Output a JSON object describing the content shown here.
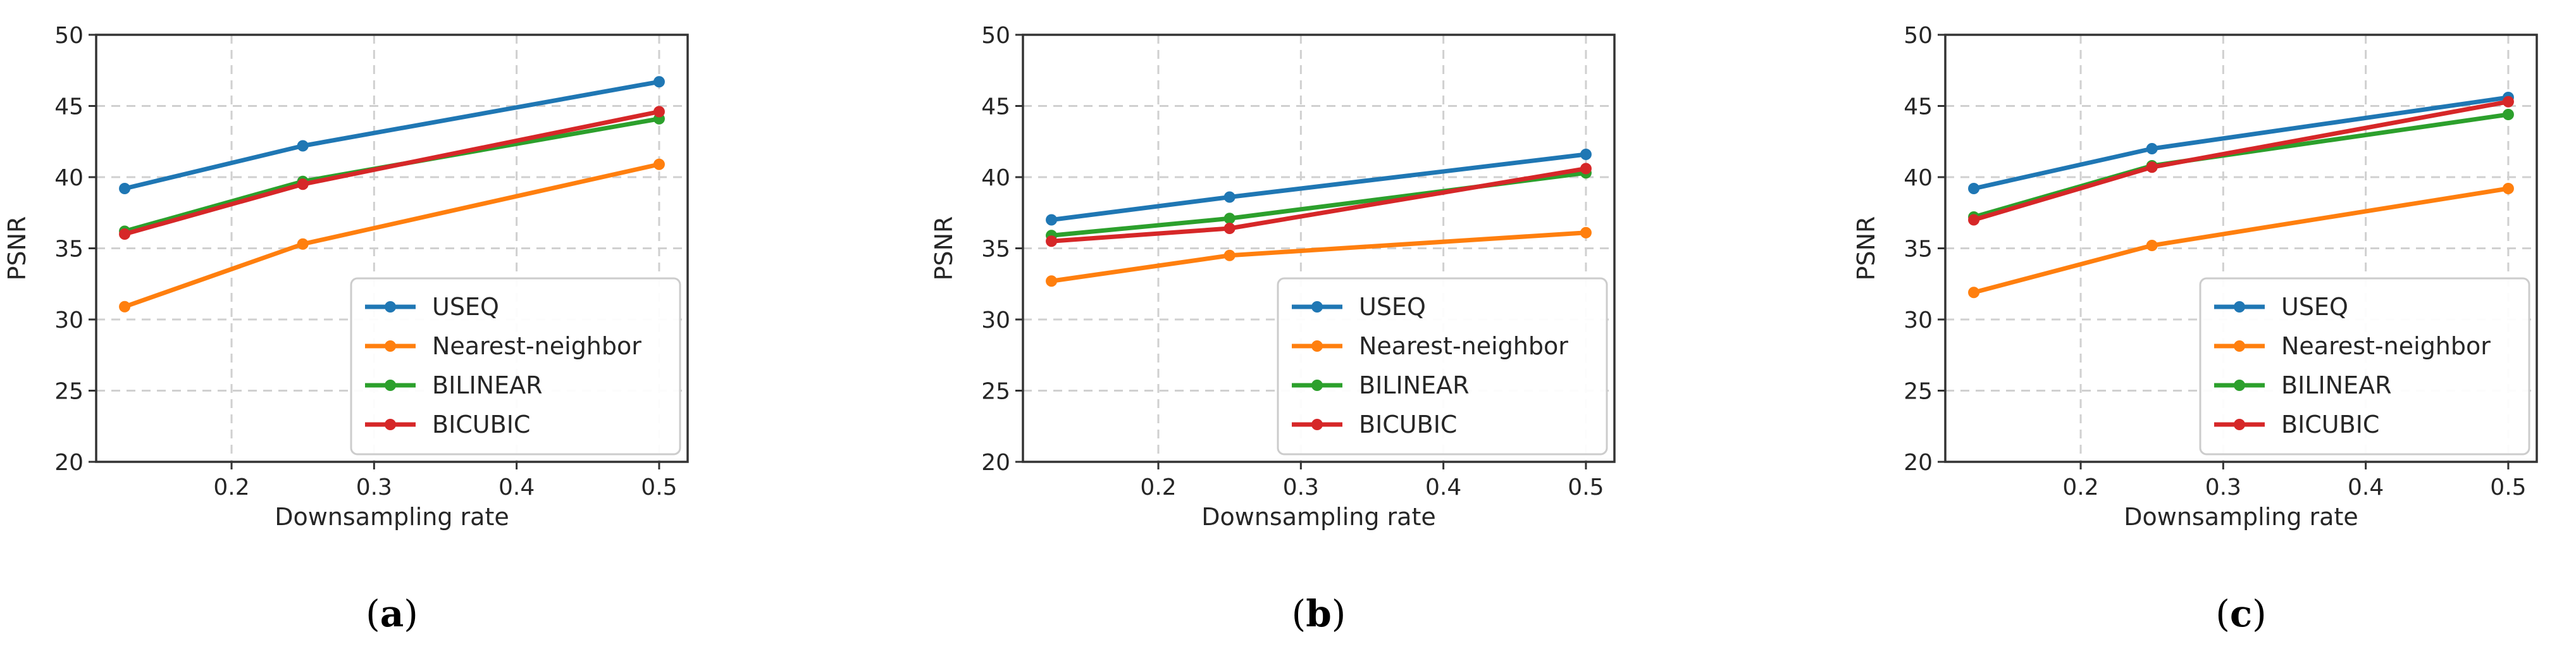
{
  "chart_data": [
    {
      "type": "line",
      "panel_label": "a",
      "xlabel": "Downsampling rate",
      "ylabel": "PSNR",
      "xlim": [
        0.105,
        0.52
      ],
      "ylim": [
        20,
        50
      ],
      "xticks": [
        0.2,
        0.3,
        0.4,
        0.5
      ],
      "xtick_labels": [
        "0.2",
        "0.3",
        "0.4",
        "0.5"
      ],
      "yticks": [
        20,
        25,
        30,
        35,
        40,
        45,
        50
      ],
      "ytick_labels": [
        "20",
        "25",
        "30",
        "35",
        "40",
        "45",
        "50"
      ],
      "grid": true,
      "legend_position": "lower-right",
      "x": [
        0.125,
        0.25,
        0.5
      ],
      "series": [
        {
          "name": "USEQ",
          "color": "#1f77b4",
          "values": [
            39.2,
            42.2,
            46.7
          ]
        },
        {
          "name": "Nearest-neighbor",
          "color": "#ff7f0e",
          "values": [
            30.9,
            35.3,
            40.9
          ]
        },
        {
          "name": "BILINEAR",
          "color": "#2ca02c",
          "values": [
            36.2,
            39.7,
            44.1
          ]
        },
        {
          "name": "BICUBIC",
          "color": "#d62728",
          "values": [
            36.0,
            39.5,
            44.6
          ]
        }
      ]
    },
    {
      "type": "line",
      "panel_label": "b",
      "xlabel": "Downsampling rate",
      "ylabel": "PSNR",
      "xlim": [
        0.105,
        0.52
      ],
      "ylim": [
        20,
        50
      ],
      "xticks": [
        0.2,
        0.3,
        0.4,
        0.5
      ],
      "xtick_labels": [
        "0.2",
        "0.3",
        "0.4",
        "0.5"
      ],
      "yticks": [
        20,
        25,
        30,
        35,
        40,
        45,
        50
      ],
      "ytick_labels": [
        "20",
        "25",
        "30",
        "35",
        "40",
        "45",
        "50"
      ],
      "grid": true,
      "legend_position": "lower-right",
      "x": [
        0.125,
        0.25,
        0.5
      ],
      "series": [
        {
          "name": "USEQ",
          "color": "#1f77b4",
          "values": [
            37.0,
            38.6,
            41.6
          ]
        },
        {
          "name": "Nearest-neighbor",
          "color": "#ff7f0e",
          "values": [
            32.7,
            34.5,
            36.1
          ]
        },
        {
          "name": "BILINEAR",
          "color": "#2ca02c",
          "values": [
            35.9,
            37.1,
            40.3
          ]
        },
        {
          "name": "BICUBIC",
          "color": "#d62728",
          "values": [
            35.5,
            36.4,
            40.6
          ]
        }
      ]
    },
    {
      "type": "line",
      "panel_label": "c",
      "xlabel": "Downsampling rate",
      "ylabel": "PSNR",
      "xlim": [
        0.105,
        0.52
      ],
      "ylim": [
        20,
        50
      ],
      "xticks": [
        0.2,
        0.3,
        0.4,
        0.5
      ],
      "xtick_labels": [
        "0.2",
        "0.3",
        "0.4",
        "0.5"
      ],
      "yticks": [
        20,
        25,
        30,
        35,
        40,
        45,
        50
      ],
      "ytick_labels": [
        "20",
        "25",
        "30",
        "35",
        "40",
        "45",
        "50"
      ],
      "grid": true,
      "legend_position": "lower-right",
      "x": [
        0.125,
        0.25,
        0.5
      ],
      "series": [
        {
          "name": "USEQ",
          "color": "#1f77b4",
          "values": [
            39.2,
            42.0,
            45.6
          ]
        },
        {
          "name": "Nearest-neighbor",
          "color": "#ff7f0e",
          "values": [
            31.9,
            35.2,
            39.2
          ]
        },
        {
          "name": "BILINEAR",
          "color": "#2ca02c",
          "values": [
            37.2,
            40.8,
            44.4
          ]
        },
        {
          "name": "BICUBIC",
          "color": "#d62728",
          "values": [
            37.0,
            40.7,
            45.3
          ]
        }
      ]
    }
  ]
}
